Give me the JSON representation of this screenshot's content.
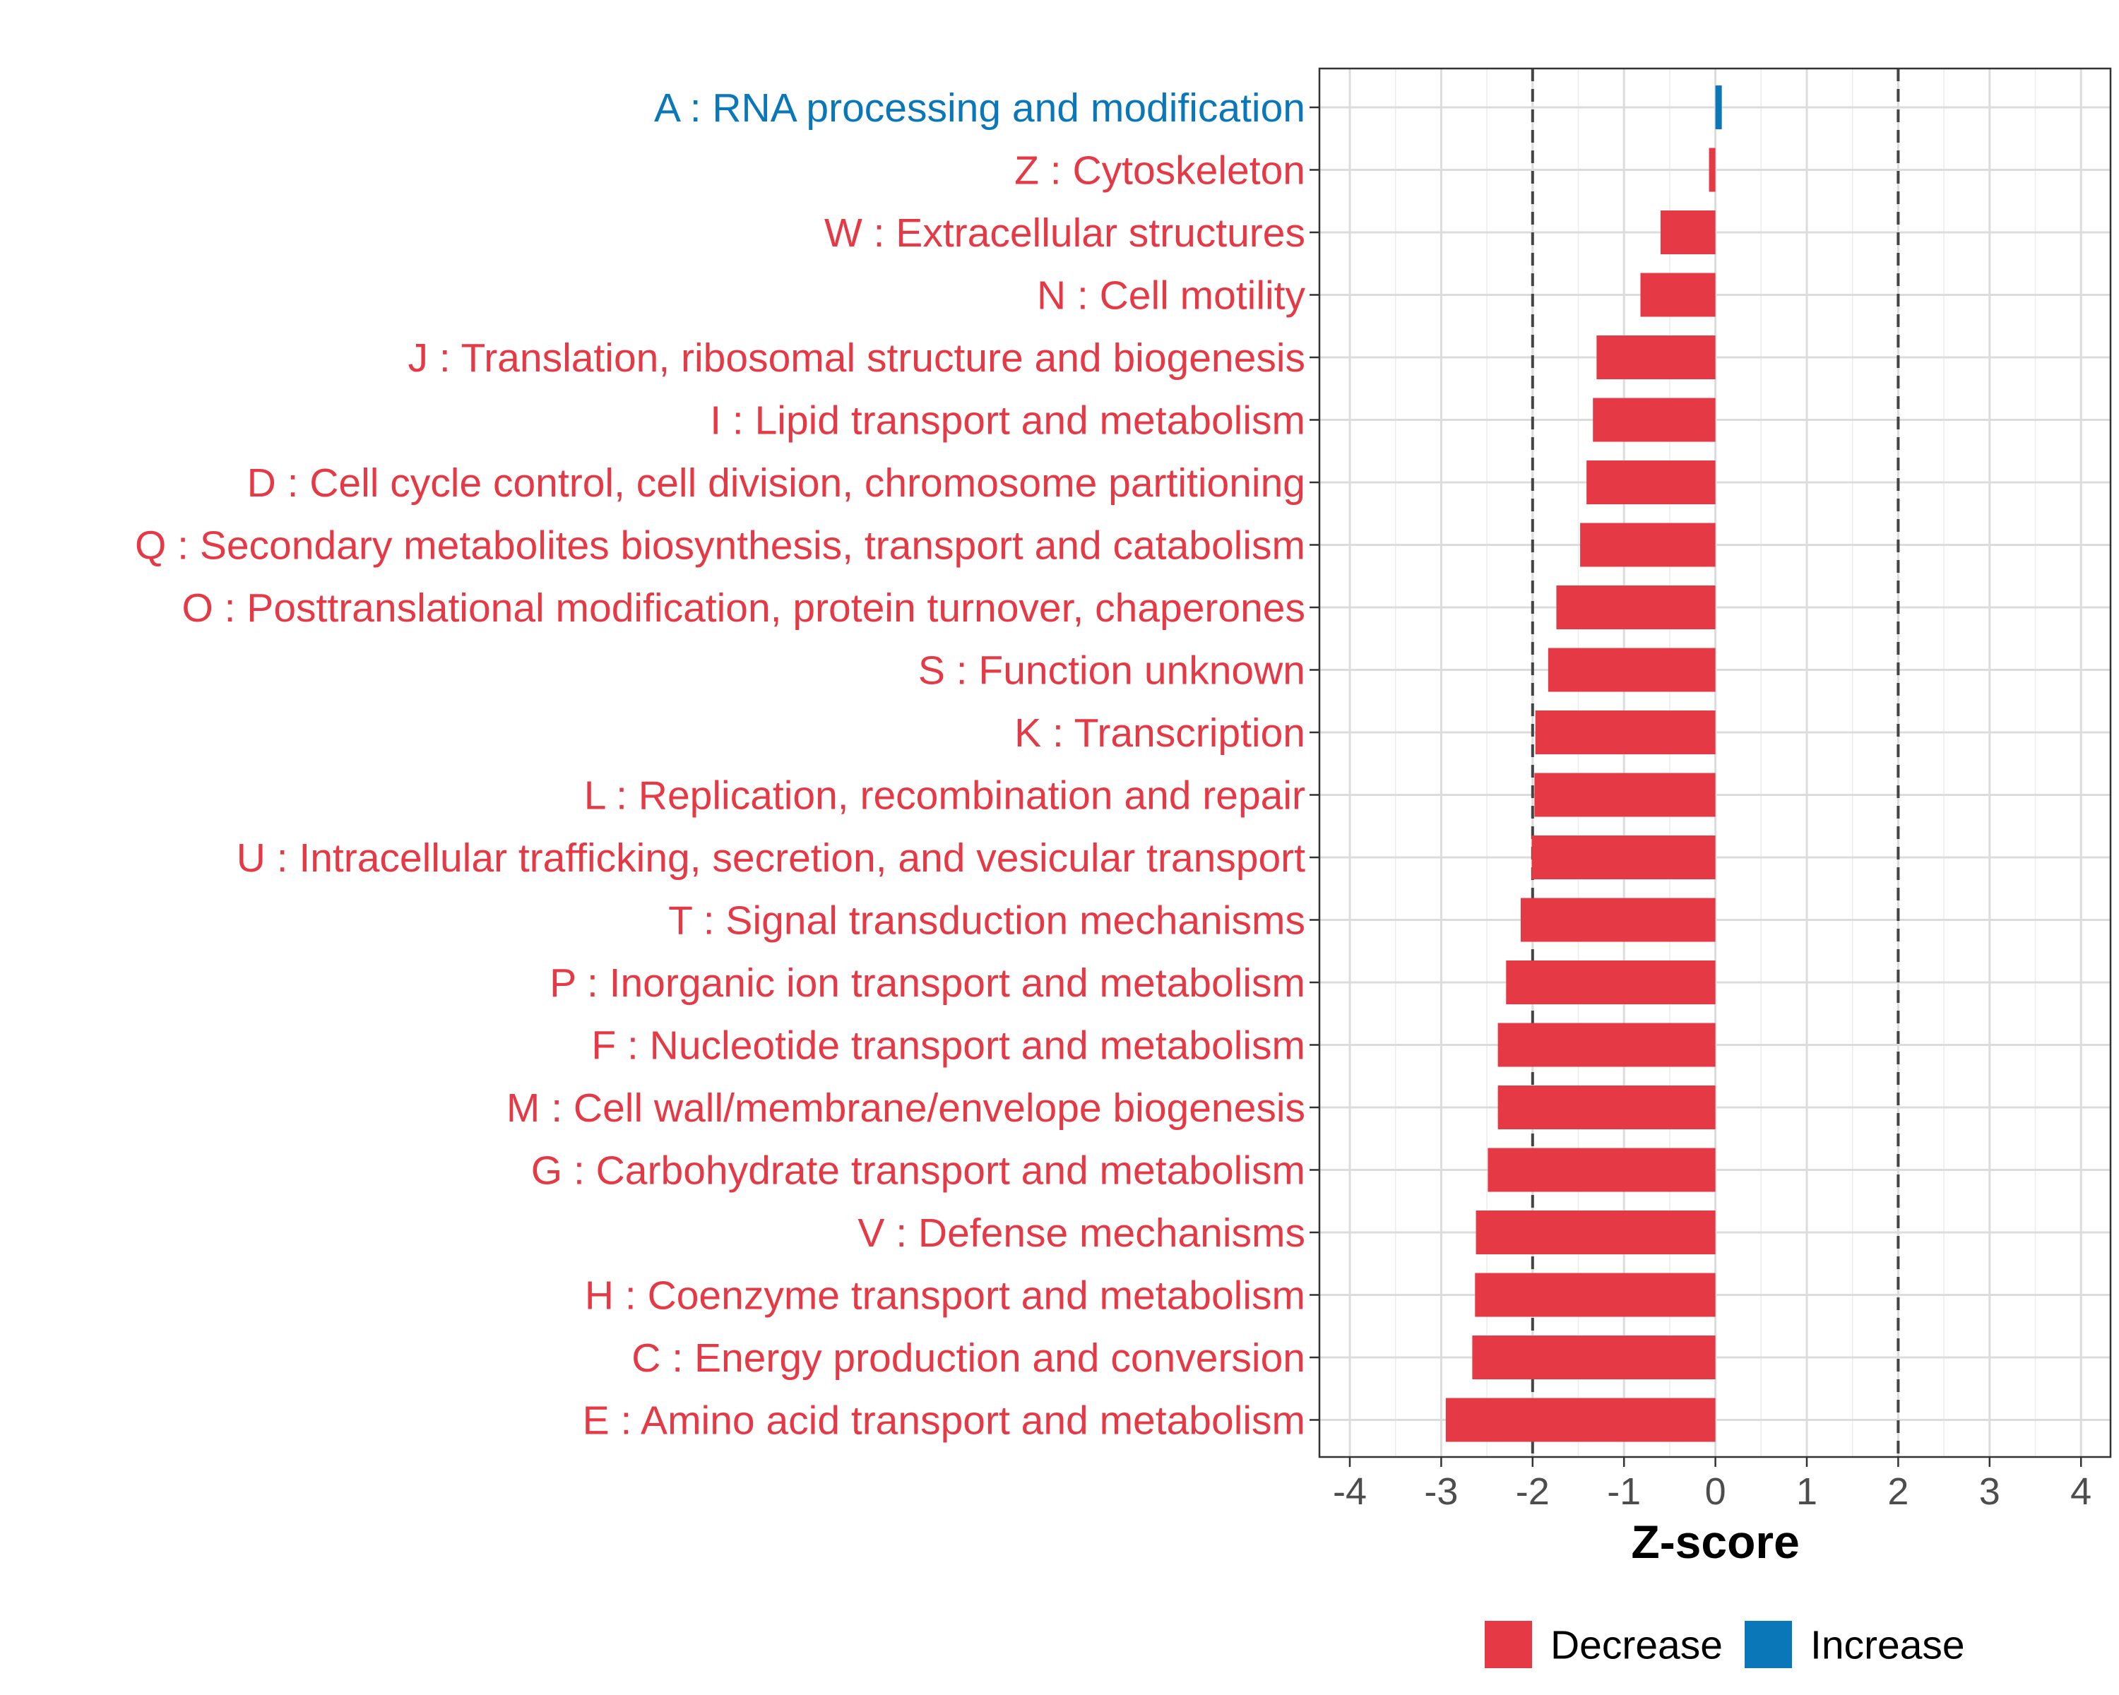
{
  "chart_data": {
    "type": "bar",
    "orientation": "horizontal",
    "title": "",
    "xlabel": "Z-score",
    "ylabel": "",
    "xlim": [
      -4.2,
      4.2
    ],
    "xticks": [
      -4,
      -3,
      -2,
      -1,
      0,
      1,
      2,
      3,
      4
    ],
    "tick_labels": [
      "-4",
      "-3",
      "-2",
      "-1",
      "0",
      "1",
      "2",
      "3",
      "4"
    ],
    "reference_lines": [
      -2,
      2
    ],
    "grid": true,
    "categories": [
      "A : RNA processing and modification",
      "Z : Cytoskeleton",
      "W : Extracellular structures",
      "N : Cell motility",
      "J : Translation, ribosomal structure and biogenesis",
      "I : Lipid transport and metabolism",
      "D : Cell cycle control, cell division, chromosome partitioning",
      "Q : Secondary metabolites biosynthesis, transport and catabolism",
      "O : Posttranslational modification, protein turnover, chaperones",
      "S : Function unknown",
      "K : Transcription",
      "L : Replication, recombination and repair",
      "U : Intracellular trafficking, secretion, and vesicular transport",
      "T : Signal transduction mechanisms",
      "P : Inorganic ion transport and metabolism",
      "F : Nucleotide transport and metabolism",
      "M : Cell wall/membrane/envelope biogenesis",
      "G : Carbohydrate transport and metabolism",
      "V : Defense mechanisms",
      "H : Coenzyme transport and metabolism",
      "C : Energy production and conversion",
      "E : Amino acid transport and metabolism"
    ],
    "values": [
      0.07,
      -0.07,
      -0.6,
      -0.82,
      -1.3,
      -1.34,
      -1.41,
      -1.48,
      -1.74,
      -1.83,
      -1.97,
      -1.98,
      -2.01,
      -2.13,
      -2.29,
      -2.38,
      -2.38,
      -2.49,
      -2.62,
      -2.63,
      -2.66,
      -2.95
    ],
    "groups": [
      "Increase",
      "Decrease",
      "Decrease",
      "Decrease",
      "Decrease",
      "Decrease",
      "Decrease",
      "Decrease",
      "Decrease",
      "Decrease",
      "Decrease",
      "Decrease",
      "Decrease",
      "Decrease",
      "Decrease",
      "Decrease",
      "Decrease",
      "Decrease",
      "Decrease",
      "Decrease",
      "Decrease",
      "Decrease"
    ],
    "legend": {
      "placement": "bottom",
      "entries": [
        {
          "label": "Decrease",
          "color": "#e63946"
        },
        {
          "label": "Increase",
          "color": "#0a77b8"
        }
      ]
    },
    "colors": {
      "Decrease": "#e63946",
      "Increase": "#0a77b8"
    }
  }
}
